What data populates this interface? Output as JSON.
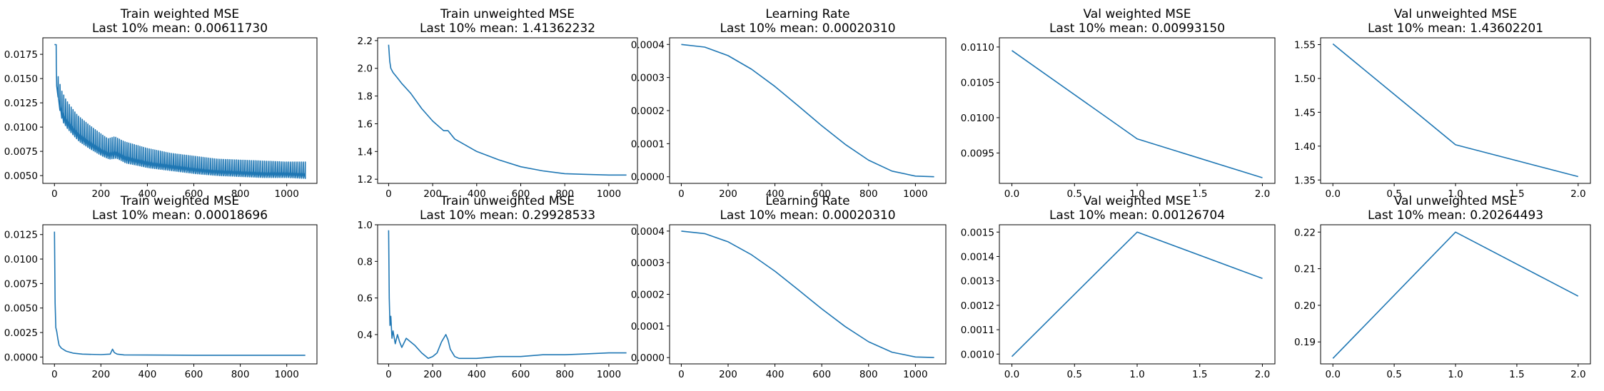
{
  "style": {
    "line_color": "#1f77b4"
  },
  "chart_data": [
    {
      "type": "line",
      "title": "Train weighted MSE",
      "subtitle": "Last 10% mean: 0.00611730",
      "xlim": [
        -50,
        1130
      ],
      "ylim": [
        0.0042,
        0.0192
      ],
      "xticks": [
        0,
        200,
        400,
        600,
        800,
        1000
      ],
      "xtick_labels": [
        "0",
        "200",
        "400",
        "600",
        "800",
        "1000"
      ],
      "yticks": [
        0.005,
        0.0075,
        0.01,
        0.0125,
        0.015,
        0.0175
      ],
      "ytick_labels": [
        "0.0050",
        "0.0075",
        "0.0100",
        "0.0125",
        "0.0150",
        "0.0175"
      ],
      "series": [
        {
          "x": [
            0,
            5,
            10,
            20,
            30,
            50,
            80,
            100,
            150,
            200,
            230,
            260,
            300,
            400,
            500,
            600,
            700,
            800,
            900,
            1000,
            1080
          ],
          "y": [
            0.0185,
            0.014,
            0.0125,
            0.0112,
            0.0105,
            0.0098,
            0.009,
            0.0085,
            0.0077,
            0.007,
            0.0067,
            0.0068,
            0.0063,
            0.0058,
            0.0055,
            0.0052,
            0.005,
            0.0049,
            0.0048,
            0.0048,
            0.0047
          ],
          "spike_y": [
            0.0185,
            0.0172,
            0.0158,
            0.0148,
            0.0138,
            0.0128,
            0.0118,
            0.0112,
            0.0102,
            0.0093,
            0.0088,
            0.009,
            0.0085,
            0.0078,
            0.0073,
            0.007,
            0.0067,
            0.0066,
            0.0065,
            0.0064,
            0.0064
          ]
        }
      ]
    },
    {
      "type": "line",
      "title": "Train unweighted MSE",
      "subtitle": "Last 10% mean: 1.41362232",
      "xlim": [
        -50,
        1130
      ],
      "ylim": [
        1.17,
        2.22
      ],
      "xticks": [
        0,
        200,
        400,
        600,
        800,
        1000
      ],
      "xtick_labels": [
        "0",
        "200",
        "400",
        "600",
        "800",
        "1000"
      ],
      "yticks": [
        1.2,
        1.4,
        1.6,
        1.8,
        2.0,
        2.2
      ],
      "ytick_labels": [
        "1.2",
        "1.4",
        "1.6",
        "1.8",
        "2.0",
        "2.2"
      ],
      "series": [
        {
          "x": [
            0,
            5,
            10,
            20,
            40,
            60,
            100,
            150,
            200,
            250,
            270,
            300,
            400,
            500,
            600,
            700,
            800,
            900,
            1000,
            1080
          ],
          "y": [
            2.17,
            2.05,
            2.0,
            1.97,
            1.93,
            1.89,
            1.82,
            1.71,
            1.62,
            1.55,
            1.55,
            1.49,
            1.4,
            1.34,
            1.29,
            1.26,
            1.24,
            1.235,
            1.23,
            1.23
          ]
        }
      ]
    },
    {
      "type": "line",
      "title": "Learning Rate",
      "subtitle": "Last 10% mean: 0.00020310",
      "xlim": [
        -50,
        1130
      ],
      "ylim": [
        -2e-05,
        0.00042
      ],
      "xticks": [
        0,
        200,
        400,
        600,
        800,
        1000
      ],
      "xtick_labels": [
        "0",
        "200",
        "400",
        "600",
        "800",
        "1000"
      ],
      "yticks": [
        0.0,
        0.0001,
        0.0002,
        0.0003,
        0.0004
      ],
      "ytick_labels": [
        "0.0000",
        "0.0001",
        "0.0002",
        "0.0003",
        "0.0004"
      ],
      "series": [
        {
          "x": [
            0,
            100,
            200,
            300,
            400,
            500,
            550,
            600,
            700,
            800,
            900,
            1000,
            1080
          ],
          "y": [
            0.0004,
            0.000392,
            0.000366,
            0.000325,
            0.000273,
            0.000214,
            0.000184,
            0.000154,
            9.8e-05,
            5e-05,
            1.7e-05,
            2e-06,
            0.0
          ]
        }
      ]
    },
    {
      "type": "line",
      "title": "Val weighted MSE",
      "subtitle": "Last 10% mean: 0.00993150",
      "xlim": [
        -0.1,
        2.1
      ],
      "ylim": [
        0.00907,
        0.01113
      ],
      "xticks": [
        0.0,
        0.5,
        1.0,
        1.5,
        2.0
      ],
      "xtick_labels": [
        "0.0",
        "0.5",
        "1.0",
        "1.5",
        "2.0"
      ],
      "yticks": [
        0.0095,
        0.01,
        0.0105,
        0.011
      ],
      "ytick_labels": [
        "0.0095",
        "0.0100",
        "0.0105",
        "0.0110"
      ],
      "series": [
        {
          "x": [
            0,
            1,
            2
          ],
          "y": [
            0.01095,
            0.0097,
            0.00915
          ]
        }
      ]
    },
    {
      "type": "line",
      "title": "Val unweighted MSE",
      "subtitle": "Last 10% mean: 1.43602201",
      "xlim": [
        -0.1,
        2.1
      ],
      "ylim": [
        1.345,
        1.56
      ],
      "xticks": [
        0.0,
        0.5,
        1.0,
        1.5,
        2.0
      ],
      "xtick_labels": [
        "0.0",
        "0.5",
        "1.0",
        "1.5",
        "2.0"
      ],
      "yticks": [
        1.35,
        1.4,
        1.45,
        1.5,
        1.55
      ],
      "ytick_labels": [
        "1.35",
        "1.40",
        "1.45",
        "1.50",
        "1.55"
      ],
      "series": [
        {
          "x": [
            0,
            1,
            2
          ],
          "y": [
            1.551,
            1.402,
            1.355
          ]
        }
      ]
    },
    {
      "type": "line",
      "title": "Train weighted MSE",
      "subtitle": "Last 10% mean: 0.00018696",
      "xlim": [
        -50,
        1130
      ],
      "ylim": [
        -0.0007,
        0.0135
      ],
      "xticks": [
        0,
        200,
        400,
        600,
        800,
        1000
      ],
      "xtick_labels": [
        "0",
        "200",
        "400",
        "600",
        "800",
        "1000"
      ],
      "yticks": [
        0.0,
        0.0025,
        0.005,
        0.0075,
        0.01,
        0.0125
      ],
      "ytick_labels": [
        "0.0000",
        "0.0025",
        "0.0050",
        "0.0075",
        "0.0100",
        "0.0125"
      ],
      "series": [
        {
          "x": [
            0,
            3,
            6,
            10,
            15,
            20,
            30,
            50,
            80,
            120,
            200,
            240,
            250,
            258,
            270,
            300,
            400,
            600,
            800,
            1000,
            1080
          ],
          "y": [
            0.0128,
            0.0055,
            0.003,
            0.0026,
            0.0018,
            0.0012,
            0.0009,
            0.0006,
            0.0004,
            0.0003,
            0.00025,
            0.0003,
            0.0008,
            0.00045,
            0.0003,
            0.00022,
            0.0002,
            0.00018,
            0.00018,
            0.00018,
            0.00018
          ]
        }
      ]
    },
    {
      "type": "line",
      "title": "Train unweighted MSE",
      "subtitle": "Last 10% mean: 0.29928533",
      "xlim": [
        -50,
        1130
      ],
      "ylim": [
        0.24,
        1.0
      ],
      "xticks": [
        0,
        200,
        400,
        600,
        800,
        1000
      ],
      "xtick_labels": [
        "0",
        "200",
        "400",
        "600",
        "800",
        "1000"
      ],
      "yticks": [
        0.4,
        0.6,
        0.8,
        1.0
      ],
      "ytick_labels": [
        "0.4",
        "0.6",
        "0.8",
        "1.0"
      ],
      "series": [
        {
          "x": [
            0,
            3,
            6,
            10,
            15,
            20,
            30,
            40,
            50,
            60,
            80,
            100,
            120,
            150,
            180,
            200,
            220,
            240,
            260,
            270,
            280,
            300,
            320,
            350,
            400,
            500,
            600,
            700,
            800,
            900,
            1000,
            1080
          ],
          "y": [
            0.97,
            0.6,
            0.45,
            0.5,
            0.38,
            0.42,
            0.35,
            0.4,
            0.36,
            0.33,
            0.38,
            0.36,
            0.34,
            0.3,
            0.27,
            0.28,
            0.3,
            0.36,
            0.4,
            0.37,
            0.32,
            0.28,
            0.27,
            0.27,
            0.27,
            0.28,
            0.28,
            0.29,
            0.29,
            0.295,
            0.3,
            0.3
          ]
        }
      ]
    },
    {
      "type": "line",
      "title": "Learning Rate",
      "subtitle": "Last 10% mean: 0.00020310",
      "xlim": [
        -50,
        1130
      ],
      "ylim": [
        -2e-05,
        0.00042
      ],
      "xticks": [
        0,
        200,
        400,
        600,
        800,
        1000
      ],
      "xtick_labels": [
        "0",
        "200",
        "400",
        "600",
        "800",
        "1000"
      ],
      "yticks": [
        0.0,
        0.0001,
        0.0002,
        0.0003,
        0.0004
      ],
      "ytick_labels": [
        "0.0000",
        "0.0001",
        "0.0002",
        "0.0003",
        "0.0004"
      ],
      "series": [
        {
          "x": [
            0,
            100,
            200,
            300,
            400,
            500,
            550,
            600,
            700,
            800,
            900,
            1000,
            1080
          ],
          "y": [
            0.0004,
            0.000392,
            0.000366,
            0.000325,
            0.000273,
            0.000214,
            0.000184,
            0.000154,
            9.8e-05,
            5e-05,
            1.7e-05,
            2e-06,
            0.0
          ]
        }
      ]
    },
    {
      "type": "line",
      "title": "Val weighted MSE",
      "subtitle": "Last 10% mean: 0.00126704",
      "xlim": [
        -0.1,
        2.1
      ],
      "ylim": [
        0.00096,
        0.00153
      ],
      "xticks": [
        0.0,
        0.5,
        1.0,
        1.5,
        2.0
      ],
      "xtick_labels": [
        "0.0",
        "0.5",
        "1.0",
        "1.5",
        "2.0"
      ],
      "yticks": [
        0.001,
        0.0011,
        0.0012,
        0.0013,
        0.0014,
        0.0015
      ],
      "ytick_labels": [
        "0.0010",
        "0.0011",
        "0.0012",
        "0.0013",
        "0.0014",
        "0.0015"
      ],
      "series": [
        {
          "x": [
            0,
            1,
            2
          ],
          "y": [
            0.00099,
            0.0015,
            0.00131
          ]
        }
      ]
    },
    {
      "type": "line",
      "title": "Val unweighted MSE",
      "subtitle": "Last 10% mean: 0.20264493",
      "xlim": [
        -0.1,
        2.1
      ],
      "ylim": [
        0.184,
        0.222
      ],
      "xticks": [
        0.0,
        0.5,
        1.0,
        1.5,
        2.0
      ],
      "xtick_labels": [
        "0.0",
        "0.5",
        "1.0",
        "1.5",
        "2.0"
      ],
      "yticks": [
        0.19,
        0.2,
        0.21,
        0.22
      ],
      "ytick_labels": [
        "0.19",
        "0.20",
        "0.21",
        "0.22"
      ],
      "series": [
        {
          "x": [
            0,
            1,
            2
          ],
          "y": [
            0.1855,
            0.22,
            0.2025
          ]
        }
      ]
    }
  ]
}
